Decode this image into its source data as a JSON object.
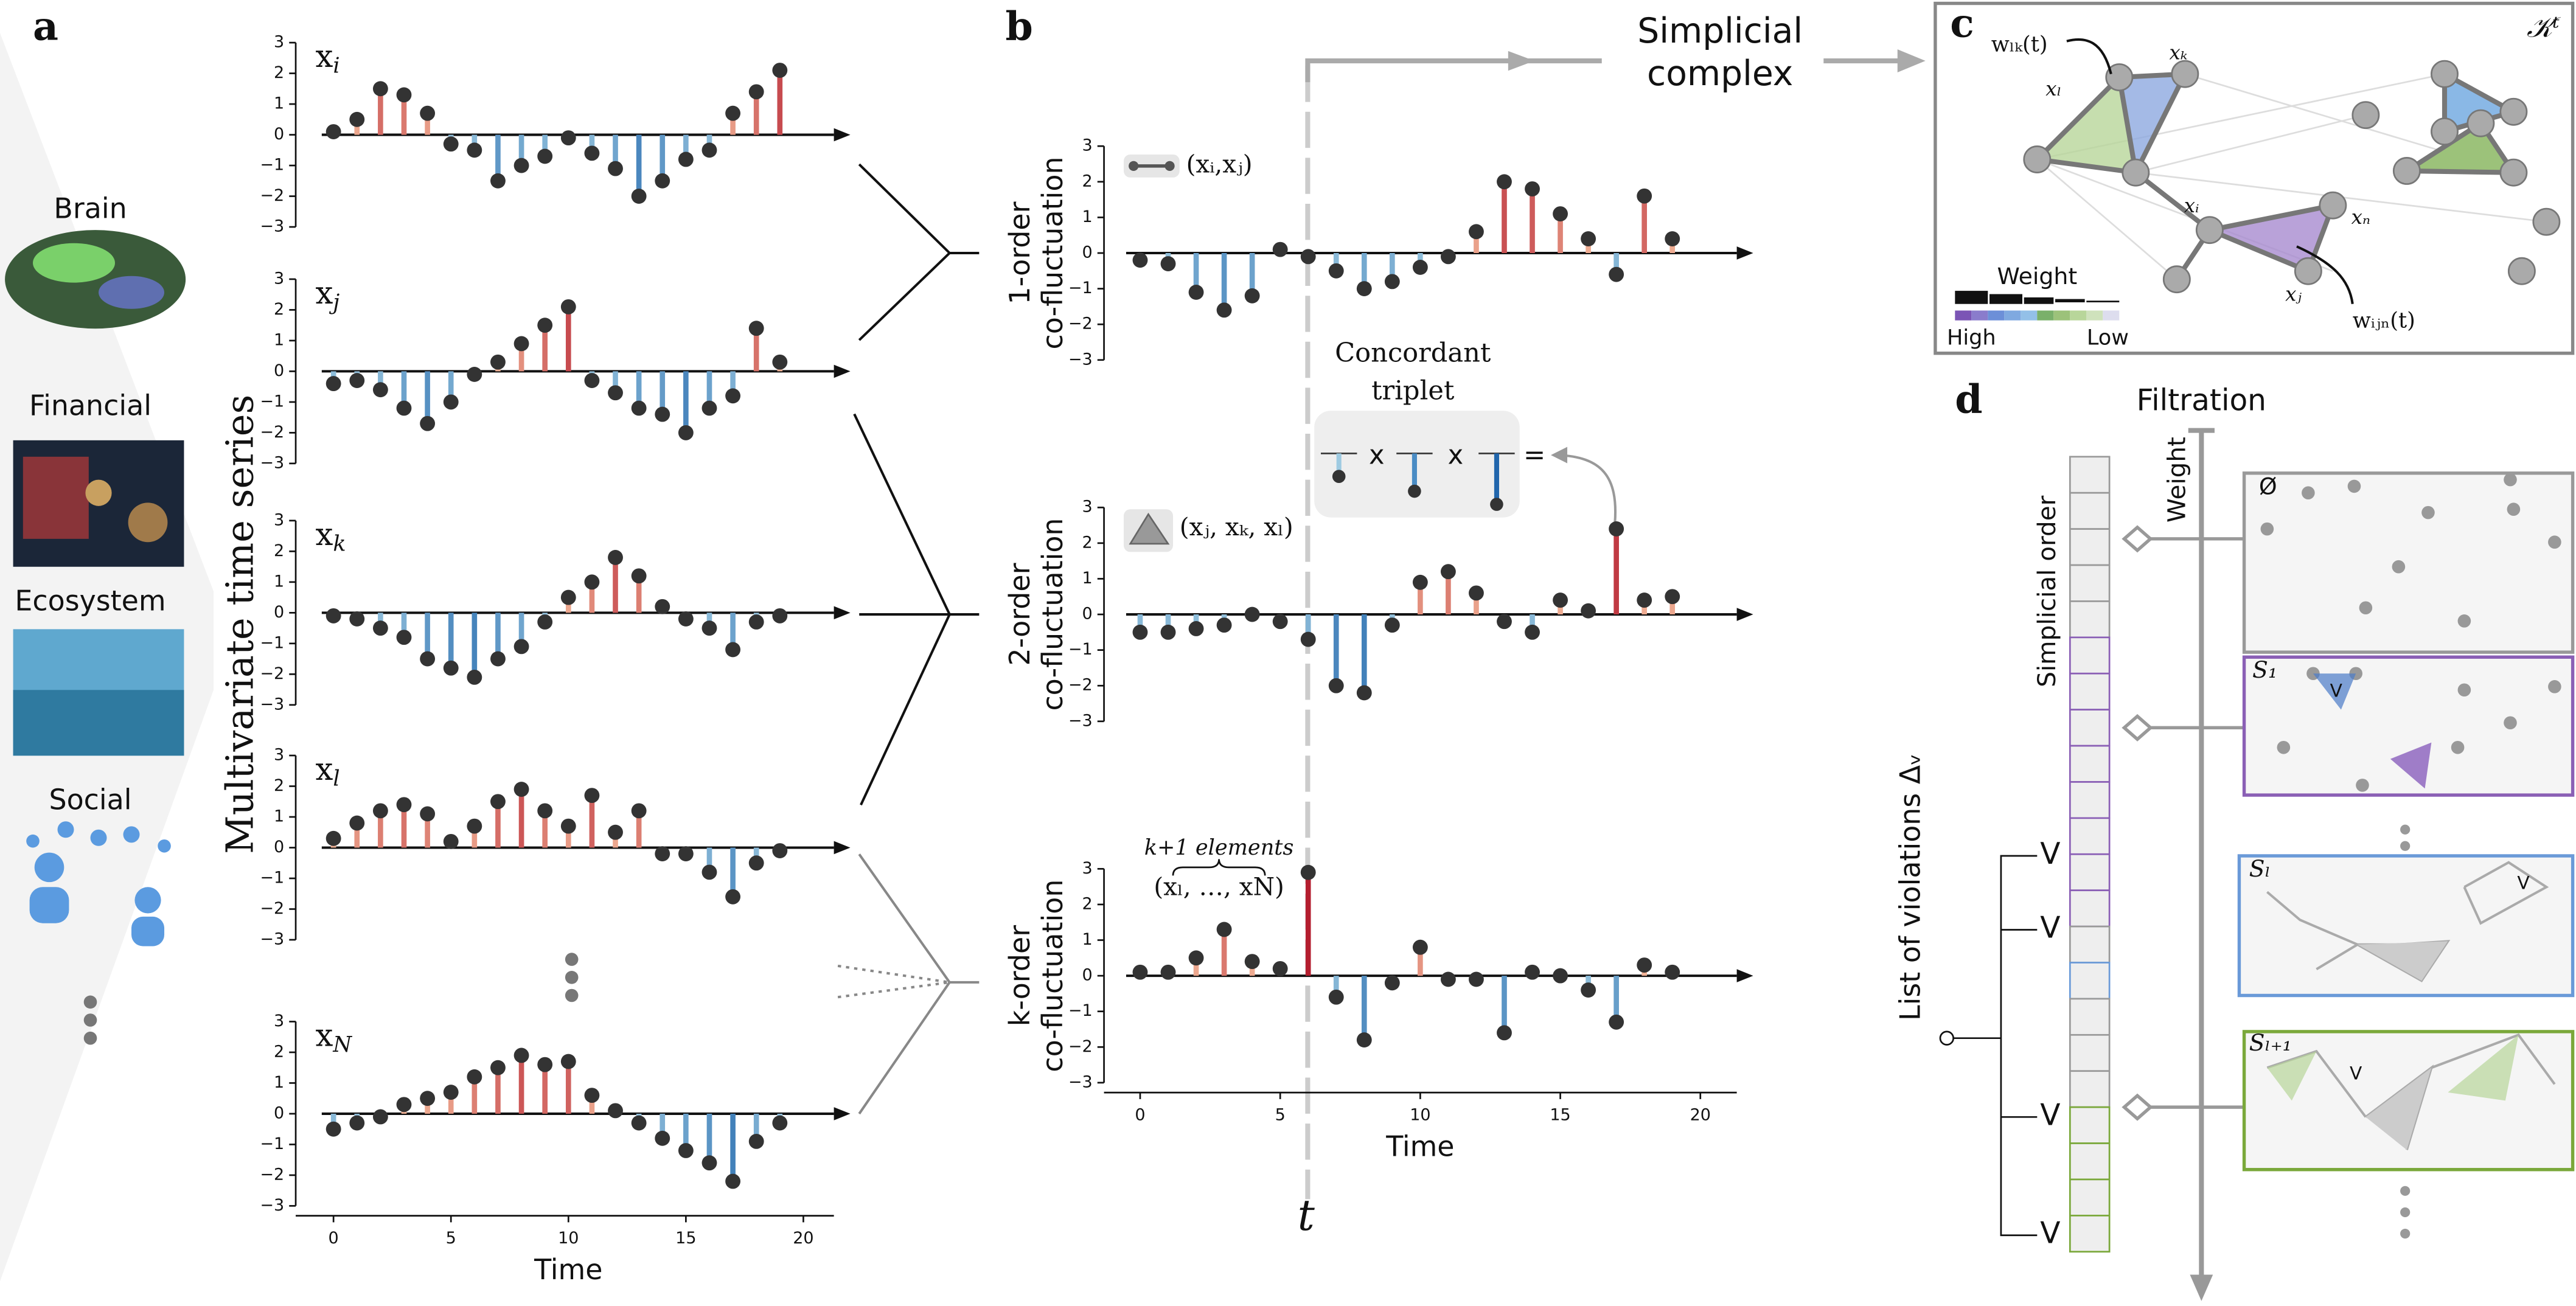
{
  "chart_data": [
    {
      "type": "stem",
      "title": [
        "x",
        "i"
      ],
      "x": [
        0,
        1,
        2,
        3,
        4,
        5,
        6,
        7,
        8,
        9,
        10,
        11,
        12,
        13,
        14,
        15,
        16,
        17,
        18,
        19
      ],
      "values": [
        0.1,
        0.5,
        1.5,
        1.3,
        0.7,
        -0.3,
        -0.5,
        -1.5,
        -1.0,
        -0.7,
        -0.1,
        -0.6,
        -1.1,
        -2.0,
        -1.5,
        -0.8,
        -0.5,
        0.7,
        1.4,
        2.1
      ],
      "ylim": [
        -3,
        3
      ],
      "yticks": [
        {
          "value": -3,
          "label": "−3"
        },
        {
          "value": -2,
          "label": "−2"
        },
        {
          "value": -1,
          "label": "−1"
        },
        0,
        1,
        2,
        3
      ]
    },
    {
      "type": "stem",
      "title": [
        "x",
        "j"
      ],
      "x": [
        0,
        1,
        2,
        3,
        4,
        5,
        6,
        7,
        8,
        9,
        10,
        11,
        12,
        13,
        14,
        15,
        16,
        17,
        18,
        19
      ],
      "values": [
        -0.4,
        -0.3,
        -0.6,
        -1.2,
        -1.7,
        -1.0,
        -0.1,
        0.3,
        0.9,
        1.5,
        2.1,
        -0.3,
        -0.7,
        -1.2,
        -1.4,
        -2.0,
        -1.2,
        -0.8,
        1.4,
        0.3
      ],
      "ylim": [
        -3,
        3
      ],
      "yticks": [
        {
          "value": -3,
          "label": "−3"
        },
        {
          "value": -2,
          "label": "−2"
        },
        {
          "value": -1,
          "label": "−1"
        },
        0,
        1,
        2,
        3
      ]
    },
    {
      "type": "stem",
      "title": [
        "x",
        "k"
      ],
      "x": [
        0,
        1,
        2,
        3,
        4,
        5,
        6,
        7,
        8,
        9,
        10,
        11,
        12,
        13,
        14,
        15,
        16,
        17,
        18,
        19
      ],
      "values": [
        -0.1,
        -0.2,
        -0.5,
        -0.8,
        -1.5,
        -1.8,
        -2.1,
        -1.5,
        -1.1,
        -0.3,
        0.5,
        1.0,
        1.8,
        1.2,
        0.2,
        -0.2,
        -0.5,
        -1.2,
        -0.3,
        -0.1
      ],
      "ylim": [
        -3,
        3
      ],
      "yticks": [
        {
          "value": -3,
          "label": "−3"
        },
        {
          "value": -2,
          "label": "−2"
        },
        {
          "value": -1,
          "label": "−1"
        },
        0,
        1,
        2,
        3
      ]
    },
    {
      "type": "stem",
      "title": [
        "x",
        "l"
      ],
      "x": [
        0,
        1,
        2,
        3,
        4,
        5,
        6,
        7,
        8,
        9,
        10,
        11,
        12,
        13,
        14,
        15,
        16,
        17,
        18,
        19
      ],
      "values": [
        0.3,
        0.8,
        1.2,
        1.4,
        1.1,
        0.2,
        0.7,
        1.5,
        1.9,
        1.2,
        0.7,
        1.7,
        0.5,
        1.2,
        -0.2,
        -0.2,
        -0.8,
        -1.6,
        -0.5,
        -0.1
      ],
      "ylim": [
        -3,
        3
      ],
      "yticks": [
        {
          "value": -3,
          "label": "−3"
        },
        {
          "value": -2,
          "label": "−2"
        },
        {
          "value": -1,
          "label": "−1"
        },
        0,
        1,
        2,
        3
      ]
    },
    {
      "type": "stem",
      "title": [
        "x",
        "N"
      ],
      "xlabel": "Time",
      "x": [
        0,
        1,
        2,
        3,
        4,
        5,
        6,
        7,
        8,
        9,
        10,
        11,
        12,
        13,
        14,
        15,
        16,
        17,
        18,
        19
      ],
      "values": [
        -0.5,
        -0.3,
        -0.1,
        0.3,
        0.5,
        0.7,
        1.2,
        1.5,
        1.9,
        1.6,
        1.7,
        0.6,
        0.1,
        -0.3,
        -0.8,
        -1.2,
        -1.6,
        -2.2,
        -0.9,
        -0.3
      ],
      "xlim": [
        0,
        20
      ],
      "xticks": [
        0,
        5,
        10,
        15,
        20
      ],
      "ylim": [
        -3,
        3
      ],
      "yticks": [
        {
          "value": -3,
          "label": "−3"
        },
        {
          "value": -2,
          "label": "−2"
        },
        {
          "value": -1,
          "label": "−1"
        },
        0,
        1,
        2,
        3
      ]
    },
    {
      "type": "stem",
      "ylabel": [
        "1-order",
        "co-fluctuation"
      ],
      "x": [
        0,
        1,
        2,
        3,
        4,
        5,
        6,
        7,
        8,
        9,
        10,
        11,
        12,
        13,
        14,
        15,
        16,
        17,
        18,
        19
      ],
      "values": [
        -0.2,
        -0.3,
        -1.1,
        -1.6,
        -1.2,
        0.1,
        -0.1,
        -0.5,
        -1.0,
        -0.8,
        -0.4,
        -0.1,
        0.6,
        2.0,
        1.8,
        1.1,
        0.4,
        -0.6,
        1.6,
        0.4
      ],
      "ylim": [
        -3,
        3
      ],
      "yticks": [
        {
          "value": -3,
          "label": "−3"
        },
        {
          "value": -2,
          "label": "−2"
        },
        {
          "value": -1,
          "label": "−1"
        },
        0,
        1,
        2,
        3
      ]
    },
    {
      "type": "stem",
      "ylabel": [
        "2-order",
        "co-fluctuation"
      ],
      "x": [
        0,
        1,
        2,
        3,
        4,
        5,
        6,
        7,
        8,
        9,
        10,
        11,
        12,
        13,
        14,
        15,
        16,
        17,
        18,
        19
      ],
      "values": [
        -0.5,
        -0.5,
        -0.4,
        -0.3,
        0,
        -0.2,
        -0.7,
        -2.0,
        -2.2,
        -0.3,
        0.9,
        1.2,
        0.6,
        -0.2,
        -0.5,
        0.4,
        0.1,
        2.4,
        0.4,
        0.5
      ],
      "ylim": [
        -3,
        3
      ],
      "yticks": [
        {
          "value": -3,
          "label": "−3"
        },
        {
          "value": -2,
          "label": "−2"
        },
        {
          "value": -1,
          "label": "−1"
        },
        0,
        1,
        2,
        3
      ]
    },
    {
      "type": "stem",
      "ylabel": [
        "k-order",
        "co-fluctuation"
      ],
      "xlabel": "Time",
      "x": [
        0,
        1,
        2,
        3,
        4,
        5,
        6,
        7,
        8,
        9,
        10,
        11,
        12,
        13,
        14,
        15,
        16,
        17,
        18,
        19
      ],
      "values": [
        0.1,
        0.1,
        0.5,
        1.3,
        0.4,
        0.2,
        2.9,
        -0.6,
        -1.8,
        -0.2,
        0.8,
        -0.1,
        -0.1,
        -1.6,
        0.1,
        0,
        -0.4,
        -1.3,
        0.3,
        0.1
      ],
      "xlim": [
        0,
        20
      ],
      "xticks": [
        0,
        5,
        10,
        15,
        20
      ],
      "ylim": [
        -3,
        3
      ],
      "yticks": [
        {
          "value": -3,
          "label": "−3"
        },
        {
          "value": -2,
          "label": "−2"
        },
        {
          "value": -1,
          "label": "−1"
        },
        0,
        1,
        2,
        3
      ]
    }
  ],
  "colors": {
    "positive": [
      "#f8c3a2",
      "#b2182b"
    ],
    "negative": [
      "#9ecae1",
      "#2166ac"
    ],
    "marker": "#333333"
  },
  "labels": {
    "panel_a": "a",
    "panel_b": "b",
    "panel_c": "c",
    "panel_d": "d",
    "brain": "Brain",
    "financial": "Financial",
    "ecosystem": "Ecosystem",
    "social": "Social",
    "multivariate": "Multivariate time series",
    "simplicial_complex": [
      "Simplicial",
      "complex"
    ],
    "concordant": [
      "Concordant",
      "triplet"
    ],
    "pair": "(xᵢ,xⱼ)",
    "triplet": "(xⱼ, xₖ, xₗ)",
    "k_elements": "k+1 elements",
    "k_tuple": "(xₗ, …, xN)",
    "t": "t",
    "kt": "𝒦ᵗ",
    "wlk": "wₗₖ(t)",
    "wijn": "wᵢⱼₙ(t)",
    "nodes": [
      "xₗ",
      "xₖ",
      "xᵢ",
      "xₙ",
      "xⱼ"
    ],
    "weight": "Weight",
    "high": "High",
    "low": "Low",
    "filtration": "Filtration",
    "weight_axis": "Weight",
    "simplicial_order": "Simplicial order",
    "violations": "List of violations Δᵥ",
    "empty": "Ø",
    "s1": "S₁",
    "sl": "Sₗ",
    "sl1": "Sₗ₊₁",
    "v": "V"
  }
}
